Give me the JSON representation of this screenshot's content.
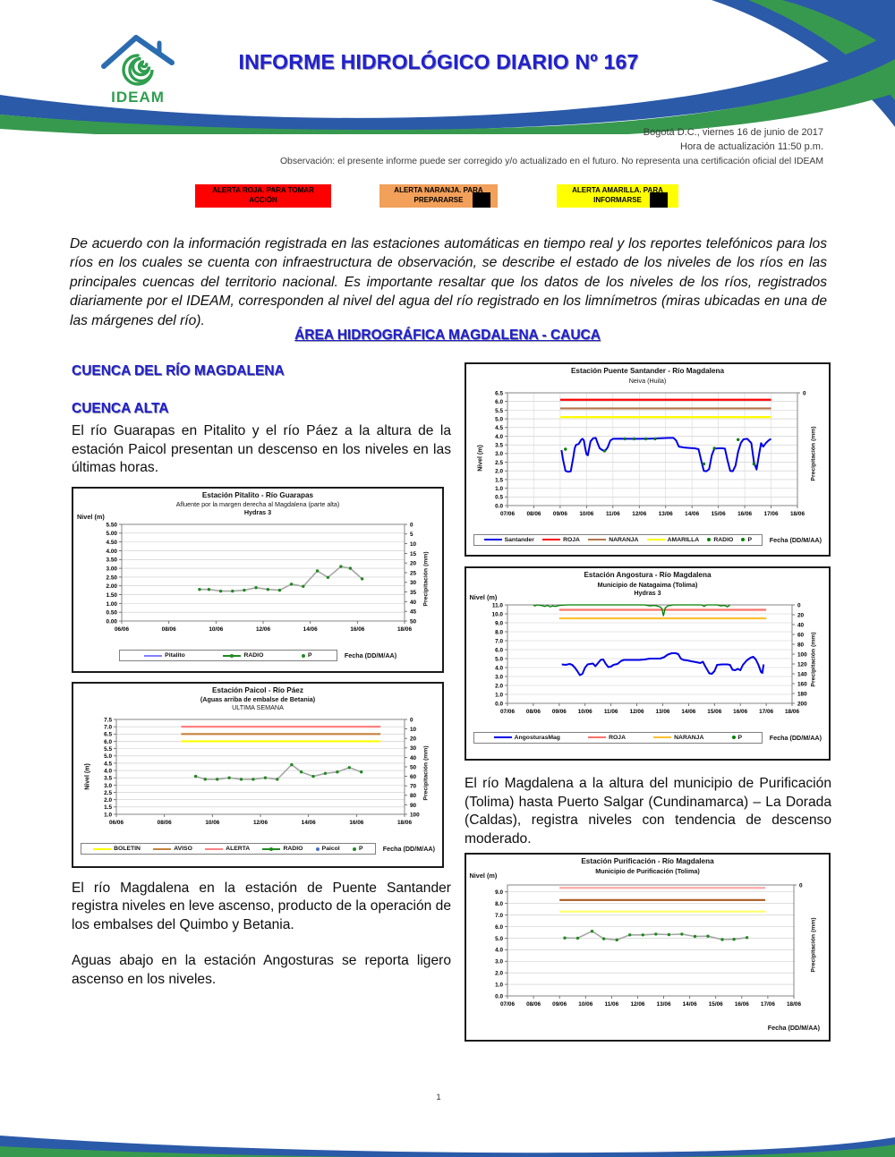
{
  "header": {
    "logo_text": "IDEAM",
    "title": "INFORME HIDROLÓGICO DIARIO Nº 167"
  },
  "meta": {
    "date_line": "Bogotá D.C., viernes 16 de junio de 2017",
    "update_line": "Hora de actualización  11:50 p.m.",
    "observation": "Observación: el presente informe puede ser corregido y/o actualizado en el futuro. No representa una certificación oficial del IDEAM"
  },
  "alerts": [
    {
      "label": "ALERTA ROJA. PARA TOMAR ACCIÓN",
      "color": "#FE0000"
    },
    {
      "label": "ALERTA NARANJA. PARA PREPARARSE",
      "color": "#F2A05A"
    },
    {
      "label": "ALERTA AMARILLA. PARA INFORMARSE",
      "color": "#FFFF00"
    }
  ],
  "intro": "De acuerdo con la información registrada en las estaciones automáticas en tiempo real y los reportes telefónicos para los ríos en los cuales se cuenta con infraestructura de observación, se describe el estado de los niveles de los ríos en las principales cuencas del territorio nacional. Es importante resaltar que los datos de los niveles de los ríos, registrados diariamente por el IDEAM, corresponden al nivel del agua del río registrado en los limnímetros (miras ubicadas en una de las márgenes del río).",
  "area_heading": "ÁREA HIDROGRÁFICA MAGDALENA - CAUCA",
  "sections": {
    "cuenca_heading": "CUENCA DEL RÍO MAGDALENA",
    "cuenca_alta_heading": "CUENCA ALTA",
    "p1": "El río Guarapas en Pitalito y el río Páez a la altura de la estación Paicol presentan un descenso en los niveles en las últimas horas.",
    "p2": "El río Magdalena en la estación de Puente Santander registra niveles en leve ascenso, producto de la operación de los embalses del Quimbo y Betania.",
    "p3": "Aguas abajo en la estación Angosturas se reporta ligero ascenso en los niveles.",
    "p4": "El río Magdalena a la altura del municipio de Purificación (Tolima) hasta Puerto Salgar (Cundinamarca) – La Dorada (Caldas), registra niveles con tendencia de descenso moderado."
  },
  "page_number": "1",
  "colors": {
    "heading_blue": "#2020CE",
    "wave_blue": "#2B5AA8",
    "wave_green": "#37994E",
    "alert_red": "#FE0000",
    "alert_orange": "#F2A05A",
    "alert_yellow": "#FFFF00"
  },
  "chart_data": [
    {
      "type": "line",
      "title": "Estación Puente Santander - Río Magdalena",
      "subtitle": "Neiva (Huila)",
      "ylabel": "Nivel (m)",
      "y2label": "Precipitación (mm)",
      "xlabel": "Fecha (DD/M/AA)",
      "ylim": [
        0,
        6.5
      ],
      "ytick_step": 0.5,
      "ytick_decimals": 1,
      "xlim": [
        7,
        18
      ],
      "xticks": [
        "07/06",
        "08/06",
        "09/06",
        "10/06",
        "11/06",
        "12/06",
        "13/06",
        "14/06",
        "15/06",
        "16/06",
        "17/06",
        "18/06"
      ],
      "y2ticks": [
        "0"
      ],
      "gridx": true,
      "hlines": [
        {
          "label": "ROJA",
          "value": 6.1,
          "color": "#FF0000",
          "x1": 9,
          "x2": 17
        },
        {
          "label": "NARANJA",
          "value": 5.6,
          "color": "#B4764B",
          "x1": 9,
          "x2": 17
        },
        {
          "label": "AMARILLA",
          "value": 5.1,
          "color": "#FFFF00",
          "x1": 9,
          "x2": 17
        }
      ],
      "series": [
        {
          "name": "Santander",
          "color": "#0000E6",
          "width": 2,
          "x": [
            9.05,
            9.1,
            9.2,
            9.3,
            9.4,
            9.5,
            9.55,
            9.6,
            9.7,
            9.8,
            9.85,
            9.9,
            9.95,
            10.0,
            10.05,
            10.15,
            10.25,
            10.35,
            10.42,
            10.5,
            10.6,
            10.7,
            10.8,
            10.9,
            11.0,
            11.3,
            11.6,
            12.0,
            12.4,
            12.8,
            13.1,
            13.3,
            13.4,
            13.5,
            13.7,
            13.9,
            14.1,
            14.25,
            14.35,
            14.45,
            14.55,
            14.65,
            14.75,
            14.85,
            15.0,
            15.15,
            15.25,
            15.35,
            15.45,
            15.55,
            15.65,
            15.75,
            15.85,
            15.95,
            16.1,
            16.25,
            16.35,
            16.45,
            16.55,
            16.62,
            16.7,
            16.8,
            16.9,
            17.0
          ],
          "y": [
            3.2,
            2.7,
            2.0,
            1.95,
            1.97,
            2.8,
            3.3,
            3.5,
            3.55,
            3.8,
            3.85,
            3.75,
            3.3,
            2.95,
            2.9,
            3.7,
            3.88,
            3.9,
            3.6,
            3.3,
            3.2,
            3.15,
            3.35,
            3.75,
            3.85,
            3.86,
            3.85,
            3.85,
            3.86,
            3.88,
            3.9,
            3.9,
            3.75,
            3.4,
            3.35,
            3.32,
            3.3,
            3.25,
            2.6,
            2.0,
            1.98,
            2.1,
            2.9,
            3.28,
            3.3,
            3.3,
            3.28,
            2.6,
            2.0,
            1.98,
            2.3,
            3.1,
            3.6,
            3.82,
            3.85,
            3.6,
            2.5,
            2.08,
            3.0,
            3.6,
            3.4,
            3.6,
            3.75,
            3.85
          ]
        },
        {
          "name": "RADIO",
          "type": "dots",
          "color": "#008000",
          "x": [
            9.2,
            10.68,
            11.45,
            11.8,
            12.25,
            12.6,
            14.45,
            14.85,
            15.75,
            16.35
          ],
          "y": [
            3.25,
            3.15,
            3.85,
            3.85,
            3.85,
            3.85,
            2.4,
            3.3,
            3.8,
            2.4
          ]
        }
      ],
      "legend": [
        {
          "label": "Santander",
          "type": "line",
          "color": "#0000E6"
        },
        {
          "label": "ROJA",
          "type": "line",
          "color": "#FF0000"
        },
        {
          "label": "NARANJA",
          "type": "line",
          "color": "#B4764B"
        },
        {
          "label": "AMARILLA",
          "type": "line",
          "color": "#FFFF00"
        },
        {
          "label": "RADIO",
          "type": "dot",
          "color": "#008000"
        },
        {
          "label": "P",
          "type": "dot",
          "color": "#008000"
        }
      ]
    },
    {
      "type": "line",
      "title": "Estación Pitalito  - Río Guarapas",
      "subtitle": "Afluente por la margen derecha al Magdalena (parte alta)",
      "subtitle2": "Hydras 3",
      "ylabel": "Nivel (m)",
      "y2label": "Precipitación (mm)",
      "xlabel": "Fecha (DD/M/AA)",
      "ylim": [
        0,
        5.5
      ],
      "ytick_step": 0.5,
      "ytick_decimals": 2,
      "xlim": [
        6,
        18
      ],
      "xticks": [
        "06/06",
        "08/06",
        "10/06",
        "12/06",
        "14/06",
        "16/06",
        "18/06"
      ],
      "y2ticks": [
        "0",
        "5",
        "10",
        "15",
        "20",
        "25",
        "30",
        "35",
        "40",
        "45",
        "50"
      ],
      "gridx": false,
      "hlines": [],
      "series": [
        {
          "name": "Pitalito-RADIO",
          "color": "#A6A6A6",
          "width": 1.6,
          "marker": true,
          "markercolor": "#1F8A1F",
          "x": [
            9.3,
            9.7,
            10.2,
            10.7,
            11.2,
            11.7,
            12.2,
            12.7,
            13.2,
            13.7,
            14.3,
            14.75,
            15.3,
            15.7,
            16.2
          ],
          "y": [
            1.8,
            1.8,
            1.7,
            1.7,
            1.75,
            1.9,
            1.8,
            1.75,
            2.1,
            1.97,
            2.85,
            2.48,
            3.1,
            3.0,
            2.4
          ]
        }
      ],
      "legend": [
        {
          "label": "Pitalito",
          "type": "line",
          "color": "#8080FF"
        },
        {
          "label": "RADIO",
          "type": "dotline",
          "color": "#1F8A1F"
        },
        {
          "label": "P",
          "type": "dot",
          "color": "#1F8A1F"
        }
      ]
    },
    {
      "type": "line",
      "title": "Estación Paicol  - Río Páez",
      "subtitle": "(Aguas arriba de embalse de Betania)",
      "subtitle2": "ULTIMA SEMANA",
      "ylabel": "Nivel (m)",
      "y2label": "Precipitación (mm)",
      "xlabel": "Fecha (DD/M/AA)",
      "ylim": [
        1,
        7.5
      ],
      "ytick_step": 0.5,
      "ytick_decimals": 1,
      "xlim": [
        6,
        18
      ],
      "xticks": [
        "06/06",
        "08/06",
        "10/06",
        "12/06",
        "14/06",
        "16/06",
        "18/06"
      ],
      "y2ticks": [
        "0",
        "10",
        "20",
        "30",
        "40",
        "50",
        "60",
        "70",
        "80",
        "90",
        "100"
      ],
      "gridx": false,
      "hlines": [
        {
          "label": "ALERTA",
          "value": 7.0,
          "color": "#FF8080",
          "x1": 8.7,
          "x2": 17
        },
        {
          "label": "AVISO",
          "value": 6.5,
          "color": "#C4823C",
          "x1": 8.7,
          "x2": 17
        },
        {
          "label": "BOLETIN",
          "value": 6.0,
          "color": "#FFFF00",
          "x1": 8.7,
          "x2": 17
        }
      ],
      "series": [
        {
          "name": "Paicol-RADIO",
          "color": "#A6A6A6",
          "width": 1.6,
          "marker": true,
          "markercolor": "#1F8A1F",
          "x": [
            9.3,
            9.7,
            10.2,
            10.7,
            11.2,
            11.7,
            12.2,
            12.7,
            13.3,
            13.7,
            14.2,
            14.7,
            15.2,
            15.7,
            16.2
          ],
          "y": [
            3.6,
            3.4,
            3.4,
            3.5,
            3.4,
            3.4,
            3.5,
            3.4,
            4.4,
            3.9,
            3.6,
            3.8,
            3.9,
            4.2,
            3.9
          ]
        }
      ],
      "legend": [
        {
          "label": "BOLETIN",
          "type": "line",
          "color": "#FFFF00"
        },
        {
          "label": "AVISO",
          "type": "line",
          "color": "#C4823C"
        },
        {
          "label": "ALERTA",
          "type": "line",
          "color": "#FF8080"
        },
        {
          "label": "RADIO",
          "type": "dotline",
          "color": "#1F8A1F"
        },
        {
          "label": "Paicol",
          "type": "dot",
          "color": "#4472C4"
        },
        {
          "label": "P",
          "type": "dot",
          "color": "#1F8A1F"
        }
      ]
    },
    {
      "type": "line",
      "title": "Estación Angostura - Río Magdalena",
      "subtitle": "Municipio de Natagaima (Tolima)",
      "subtitle2": "Hydras 3",
      "ylabel": "Nivel (m)",
      "y2label": "Precipitación (mm)",
      "xlabel": "Fecha (DD/M/AA)",
      "ylim": [
        0,
        11
      ],
      "ytick_step": 1,
      "ytick_decimals": 1,
      "xlim": [
        7,
        18
      ],
      "xticks": [
        "07/06",
        "08/06",
        "09/06",
        "10/06",
        "11/06",
        "12/06",
        "13/06",
        "14/06",
        "15/06",
        "16/06",
        "17/06",
        "18/06"
      ],
      "y2ticks": [
        "0",
        "20",
        "40",
        "60",
        "80",
        "100",
        "120",
        "140",
        "160",
        "180",
        "200"
      ],
      "gridx": false,
      "hlines": [
        {
          "label": "ROJA",
          "value": 10.45,
          "color": "#FF7368",
          "x1": 9,
          "x2": 17
        },
        {
          "label": "NARANJA",
          "value": 9.5,
          "color": "#FFC030",
          "x1": 9,
          "x2": 17
        }
      ],
      "series": [
        {
          "name": "AngosturasMag",
          "color": "#0000E6",
          "width": 2,
          "x": [
            9.1,
            9.25,
            9.4,
            9.5,
            9.6,
            9.7,
            9.8,
            9.9,
            10.0,
            10.1,
            10.2,
            10.3,
            10.4,
            10.5,
            10.6,
            10.7,
            10.8,
            10.9,
            11.0,
            11.1,
            11.25,
            11.4,
            11.5,
            11.7,
            11.9,
            12.1,
            12.3,
            12.5,
            12.7,
            12.9,
            13.05,
            13.2,
            13.35,
            13.5,
            13.6,
            13.7,
            13.8,
            13.95,
            14.1,
            14.3,
            14.45,
            14.55,
            14.65,
            14.8,
            14.9,
            15.0,
            15.1,
            15.3,
            15.5,
            15.6,
            15.7,
            15.8,
            15.9,
            16.0,
            16.1,
            16.25,
            16.4,
            16.5,
            16.6,
            16.7,
            16.8,
            16.85,
            16.9
          ],
          "y": [
            4.35,
            4.3,
            4.4,
            4.3,
            4.0,
            3.6,
            3.15,
            3.3,
            4.0,
            4.35,
            4.4,
            4.45,
            4.15,
            4.5,
            4.85,
            4.9,
            4.4,
            4.05,
            4.1,
            4.3,
            4.4,
            4.75,
            4.85,
            4.85,
            4.85,
            4.85,
            4.9,
            5.0,
            5.0,
            5.0,
            5.15,
            5.45,
            5.6,
            5.6,
            5.5,
            5.0,
            4.85,
            4.8,
            4.7,
            4.6,
            4.5,
            4.65,
            4.1,
            3.35,
            3.3,
            3.6,
            4.3,
            4.35,
            4.35,
            4.3,
            3.75,
            3.7,
            3.85,
            3.7,
            4.3,
            4.8,
            5.1,
            5.2,
            4.9,
            4.3,
            3.5,
            3.4,
            4.35
          ]
        },
        {
          "name": "P",
          "color": "#008000",
          "width": 1.3,
          "axis": "y2",
          "y2lim": [
            0,
            200
          ],
          "x": [
            8.0,
            8.05,
            8.15,
            8.3,
            8.45,
            8.55,
            8.65,
            8.75,
            8.85,
            9.0,
            9.3,
            12.3,
            12.5,
            12.7,
            12.9,
            12.97,
            13.03,
            13.1,
            13.2,
            13.4,
            14.5,
            14.6,
            14.7,
            15.1,
            15.25,
            15.4,
            15.5,
            15.6
          ],
          "y": [
            0,
            2,
            0,
            1,
            3,
            1,
            4,
            2,
            3,
            1,
            0,
            0,
            2,
            1,
            4,
            8,
            22,
            6,
            2,
            0,
            0,
            3,
            0,
            0,
            2,
            1,
            4,
            0
          ]
        }
      ],
      "legend": [
        {
          "label": "AngosturasMag",
          "type": "line",
          "color": "#0000E6"
        },
        {
          "label": "ROJA",
          "type": "line",
          "color": "#FF7368"
        },
        {
          "label": "NARANJA",
          "type": "line",
          "color": "#FFC030"
        },
        {
          "label": "P",
          "type": "dot",
          "color": "#008000"
        }
      ]
    },
    {
      "type": "line",
      "title": "Estación Purificación - Río Magdalena",
      "subtitle": "Municipio de Purificación (Tolima)",
      "ylabel": "Nivel (m)",
      "y2label": "Precipitación (mm)",
      "xlabel": "Fecha (DD/M/AA)",
      "ylim": [
        0,
        9.6
      ],
      "ytick_step": 1,
      "ytick_decimals": 1,
      "ytick_max": 9,
      "xlim": [
        7,
        18
      ],
      "xticks": [
        "07/06",
        "08/06",
        "09/06",
        "10/06",
        "11/06",
        "12/06",
        "13/06",
        "14/06",
        "15/06",
        "16/06",
        "17/06",
        "18/06"
      ],
      "y2ticks": [
        "0"
      ],
      "gridx": false,
      "hlines": [
        {
          "label": "roja",
          "value": 9.35,
          "color": "#FFA8A8",
          "x1": 9,
          "x2": 16.9
        },
        {
          "label": "naranja",
          "value": 8.3,
          "color": "#A85A20",
          "x1": 9,
          "x2": 16.9
        },
        {
          "label": "amarilla",
          "value": 7.3,
          "color": "#FFFF66",
          "x1": 9,
          "x2": 16.9
        }
      ],
      "series": [
        {
          "name": "Purificacion-RADIO",
          "color": "#A6A6A6",
          "width": 1.6,
          "marker": true,
          "markercolor": "#1F8A1F",
          "x": [
            9.2,
            9.7,
            10.25,
            10.7,
            11.2,
            11.7,
            12.2,
            12.7,
            13.2,
            13.7,
            14.2,
            14.7,
            15.25,
            15.7,
            16.2
          ],
          "y": [
            5.02,
            5.0,
            5.6,
            4.95,
            4.85,
            5.28,
            5.28,
            5.35,
            5.3,
            5.35,
            5.15,
            5.17,
            4.88,
            4.9,
            5.05
          ]
        }
      ],
      "legend": []
    }
  ]
}
